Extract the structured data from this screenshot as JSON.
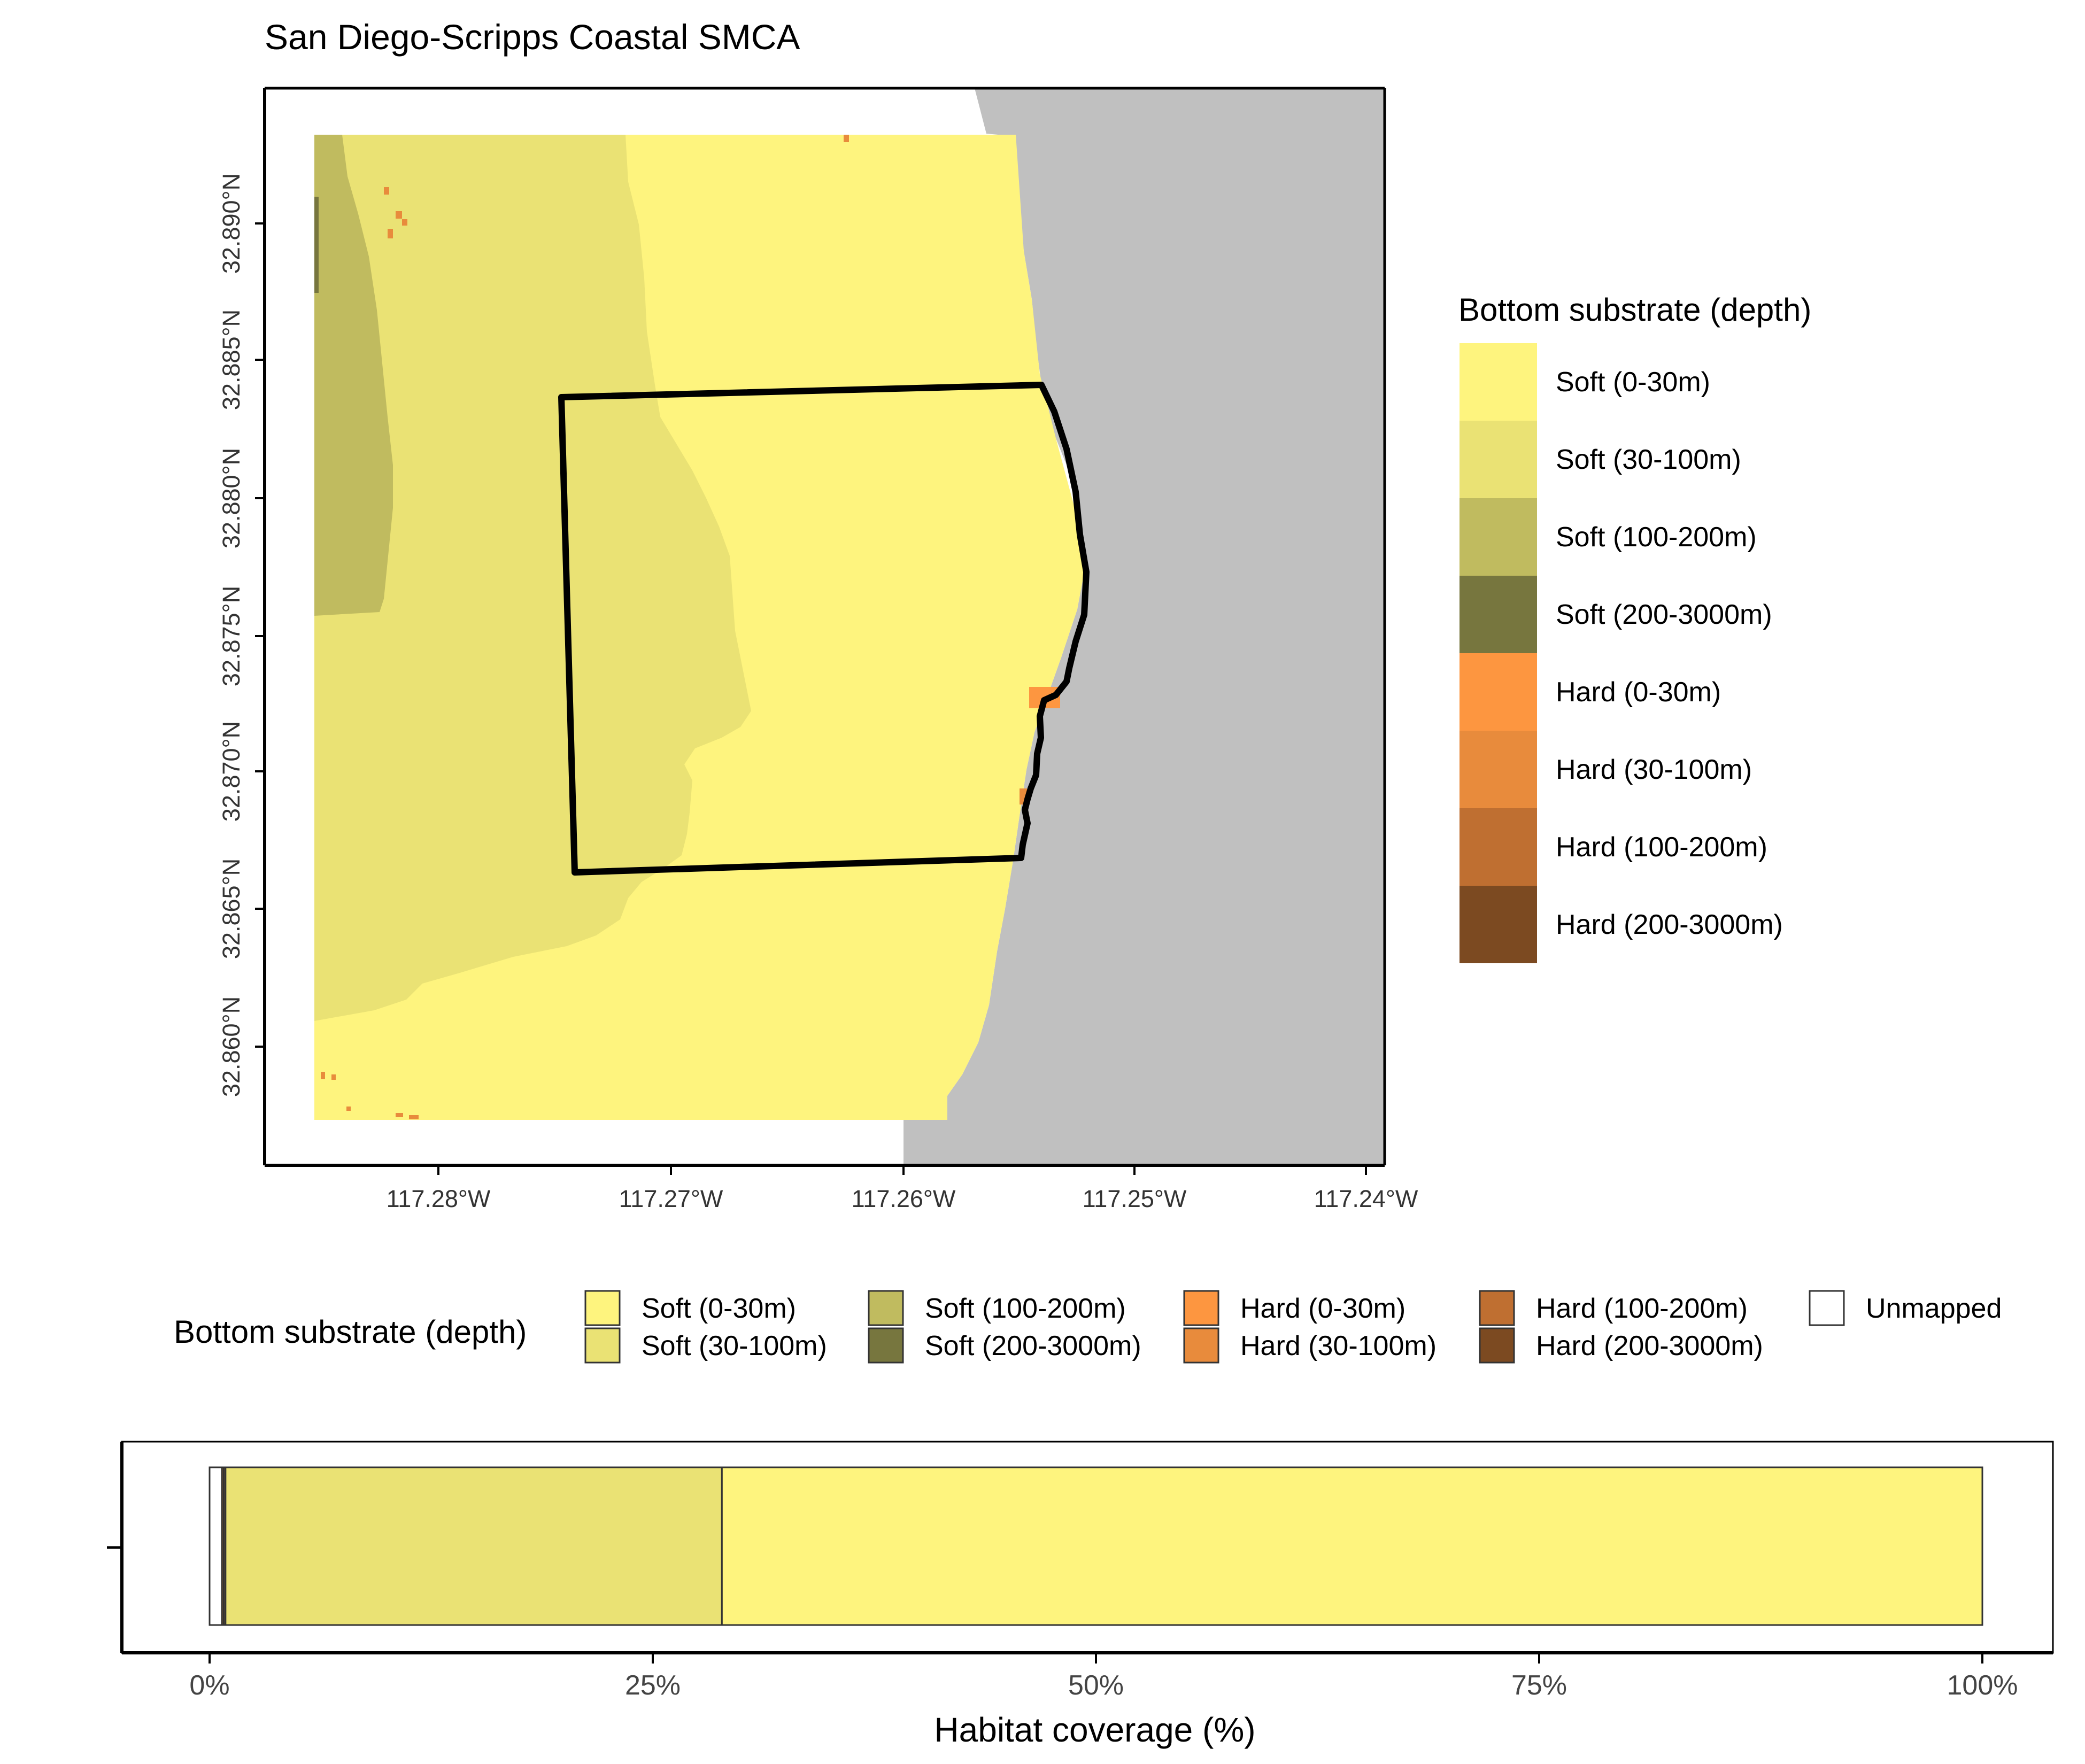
{
  "title": "San Diego-Scripps Coastal SMCA",
  "map": {
    "x_ticks": [
      "117.28°W",
      "117.27°W",
      "117.26°W",
      "117.25°W",
      "117.24°W"
    ],
    "y_ticks": [
      "32.890°N",
      "32.885°N",
      "32.880°N",
      "32.875°N",
      "32.870°N",
      "32.865°N",
      "32.860°N"
    ],
    "land_color": "#c0c0c0",
    "boundary_color": "#000000"
  },
  "legend_right": {
    "title": "Bottom substrate (depth)",
    "items": [
      {
        "label": "Soft (0-30m)",
        "color": "#fef47e"
      },
      {
        "label": "Soft (30-100m)",
        "color": "#eae274"
      },
      {
        "label": "Soft (100-200m)",
        "color": "#c0bb5f"
      },
      {
        "label": "Soft (200-3000m)",
        "color": "#77763e"
      },
      {
        "label": "Hard (0-30m)",
        "color": "#fd9640"
      },
      {
        "label": "Hard (30-100m)",
        "color": "#e88b3c"
      },
      {
        "label": "Hard (100-200m)",
        "color": "#bf6f31"
      },
      {
        "label": "Hard (200-3000m)",
        "color": "#7c4a21"
      }
    ]
  },
  "legend_bottom": {
    "title": "Bottom substrate (depth)",
    "items": [
      {
        "label": "Soft (0-30m)",
        "color": "#fef47e"
      },
      {
        "label": "Soft (30-100m)",
        "color": "#eae274"
      },
      {
        "label": "Soft (100-200m)",
        "color": "#c0bb5f"
      },
      {
        "label": "Soft (200-3000m)",
        "color": "#77763e"
      },
      {
        "label": "Hard (0-30m)",
        "color": "#fd9640"
      },
      {
        "label": "Hard (30-100m)",
        "color": "#e88b3c"
      },
      {
        "label": "Hard (100-200m)",
        "color": "#bf6f31"
      },
      {
        "label": "Hard (200-3000m)",
        "color": "#7c4a21"
      },
      {
        "label": "Unmapped",
        "color": "#ffffff"
      }
    ]
  },
  "chart_data": {
    "type": "bar",
    "orientation": "horizontal",
    "stacked": true,
    "xlabel": "Habitat coverage (%)",
    "ylabel": "",
    "xlim": [
      0,
      100
    ],
    "x_ticks": [
      "0%",
      "25%",
      "50%",
      "75%",
      "100%"
    ],
    "segments": [
      {
        "name": "Unmapped",
        "value": 0.7,
        "color": "#ffffff"
      },
      {
        "name": "Hard (100-200m)",
        "value": 0.1,
        "color": "#bf6f31"
      },
      {
        "name": "Hard (30-100m)",
        "value": 0.1,
        "color": "#e88b3c"
      },
      {
        "name": "Soft (30-100m)",
        "value": 28.0,
        "color": "#eae274"
      },
      {
        "name": "Soft (0-30m)",
        "value": 71.1,
        "color": "#fef47e"
      }
    ]
  }
}
